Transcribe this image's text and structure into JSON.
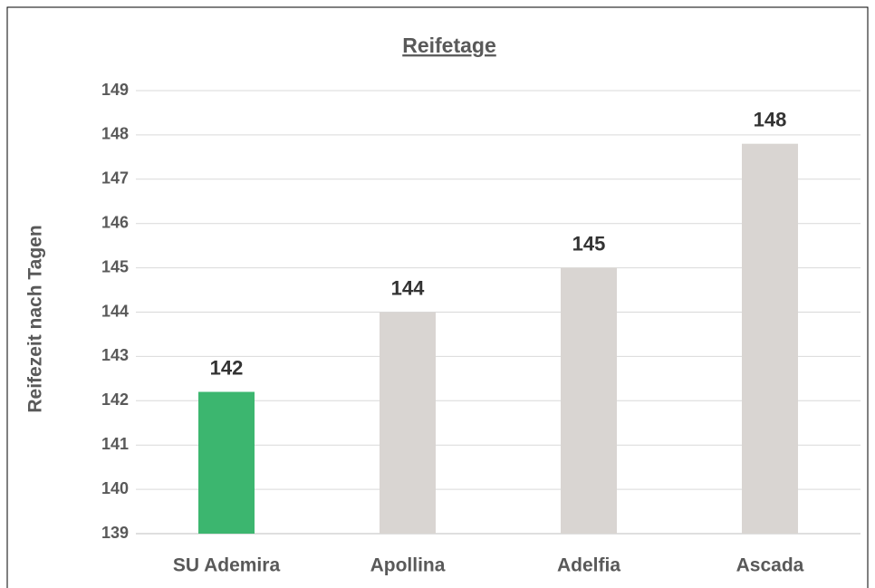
{
  "chart_data": {
    "type": "bar",
    "title": "Reifetage",
    "ylabel": "Reifezeit nach Tagen",
    "categories": [
      "SU Ademira",
      "Apollina",
      "Adelfia",
      "Ascada"
    ],
    "values": [
      142.2,
      144,
      145,
      147.8
    ],
    "value_labels": [
      "142",
      "144",
      "145",
      "148"
    ],
    "colors": [
      "#3cb66f",
      "#d9d5d2",
      "#d9d5d2",
      "#d9d5d2"
    ],
    "ylim": [
      139,
      149
    ],
    "yticks": [
      139,
      140,
      141,
      142,
      143,
      144,
      145,
      146,
      147,
      148,
      149
    ],
    "grid": true
  }
}
